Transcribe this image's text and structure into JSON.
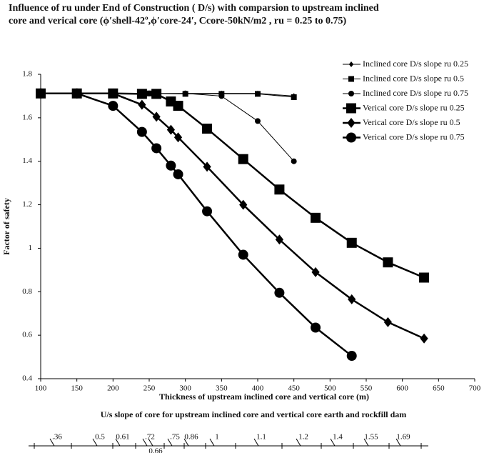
{
  "chart_data": {
    "type": "line",
    "title_lines": [
      "Influence of ru under End of Construction ( D/s) with comparsion to upstream inclined",
      "core and verical core (ϕ′shell-42º,ϕ′core-24′, Ccore-50kN/m2 , ru = 0.25 to 0.75)"
    ],
    "x_label": "Thickness of upstream inclined core and vertical core (m)",
    "y_label": "Factor of safety",
    "xlim": [
      100,
      700
    ],
    "xticks": [
      100,
      150,
      200,
      250,
      300,
      350,
      400,
      450,
      500,
      550,
      600,
      650,
      700
    ],
    "ylim": [
      0.4,
      1.8
    ],
    "yticks": [
      0.4,
      0.6,
      0.8,
      1,
      1.2,
      1.4,
      1.6,
      1.8
    ],
    "legend": "top-right",
    "series": [
      {
        "name": "Inclined core D/s slope ru 0.25",
        "color": "#000000",
        "marker": "diamond",
        "marker_size": "small",
        "x": [
          300,
          350,
          400,
          450
        ],
        "values": [
          1.712,
          1.712,
          1.712,
          1.7
        ]
      },
      {
        "name": "Inclined core D/s slope ru 0.5",
        "color": "#000000",
        "marker": "square",
        "marker_size": "small",
        "x": [
          100,
          150,
          200,
          250,
          300,
          350,
          400,
          450
        ],
        "values": [
          1.712,
          1.712,
          1.712,
          1.712,
          1.71,
          1.71,
          1.71,
          1.695
        ]
      },
      {
        "name": "Inclined core D/s slope ru 0.75",
        "color": "#000000",
        "marker": "circle",
        "marker_size": "small",
        "x": [
          100,
          150,
          200,
          250,
          300,
          350,
          400,
          450
        ],
        "values": [
          1.712,
          1.712,
          1.712,
          1.712,
          1.712,
          1.7,
          1.585,
          1.4
        ]
      },
      {
        "name": "Verical core D/s slope ru 0.25",
        "color": "#000000",
        "marker": "square",
        "marker_size": "large",
        "x": [
          100,
          150,
          200,
          240,
          260,
          280,
          290,
          330,
          380,
          430,
          480,
          530,
          580,
          630
        ],
        "values": [
          1.712,
          1.712,
          1.712,
          1.71,
          1.71,
          1.675,
          1.655,
          1.55,
          1.41,
          1.27,
          1.14,
          1.025,
          0.935,
          0.865
        ]
      },
      {
        "name": "Verical core D/s slope ru 0.5",
        "color": "#000000",
        "marker": "diamond",
        "marker_size": "large",
        "x": [
          100,
          150,
          200,
          240,
          260,
          280,
          290,
          330,
          380,
          430,
          480,
          530,
          580,
          630
        ],
        "values": [
          1.712,
          1.712,
          1.712,
          1.66,
          1.605,
          1.545,
          1.51,
          1.375,
          1.2,
          1.04,
          0.89,
          0.765,
          0.66,
          0.585
        ]
      },
      {
        "name": "Verical core D/s slope ru 0.75",
        "color": "#000000",
        "marker": "circle",
        "marker_size": "large",
        "x": [
          100,
          150,
          200,
          240,
          260,
          280,
          290,
          330,
          380,
          430,
          480,
          530
        ],
        "values": [
          1.712,
          1.712,
          1.655,
          1.535,
          1.46,
          1.38,
          1.34,
          1.17,
          0.97,
          0.795,
          0.635,
          0.505
        ]
      }
    ],
    "slope_scale": {
      "title": "U/s slope of core for upstream inclined  core and vertical core earth and rockfill dam",
      "ticks": [
        {
          "value": 0.36,
          "label": ".36"
        },
        0.5,
        0.61,
        {
          "value": 0.72,
          "label": ".72"
        },
        0.66,
        {
          "value": 0.75,
          "label": ".75"
        },
        0.86,
        1,
        1.1,
        1.2,
        1.4,
        1.55,
        1.69
      ]
    }
  }
}
